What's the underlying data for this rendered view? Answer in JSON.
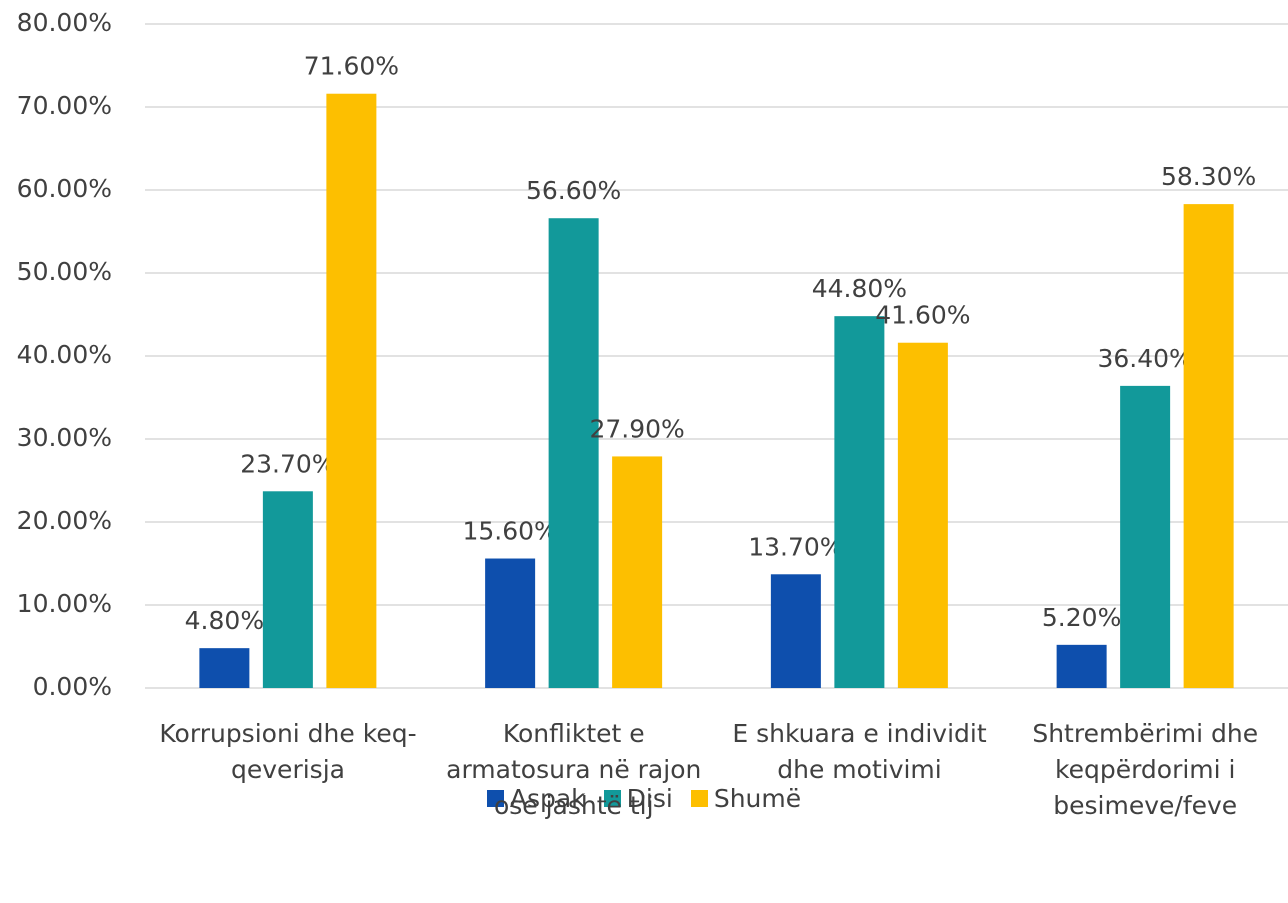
{
  "chart_data": {
    "type": "bar",
    "categories": [
      "Korrupsioni dhe keq-qeverisja",
      "Konfliktet e armatosura në rajon ose jashtë tij",
      "E shkuara e individit dhe motivimi",
      "Shtrembërimi dhe keqpërdorimi i besimeve/feve"
    ],
    "series": [
      {
        "name": "Aspak",
        "color": "#0e4fad",
        "values": [
          4.8,
          15.6,
          13.7,
          5.2
        ],
        "value_labels": [
          "4.80%",
          "15.60%",
          "13.70%",
          "5.20%"
        ]
      },
      {
        "name": "Disi",
        "color": "#12999a",
        "values": [
          23.7,
          56.6,
          44.8,
          36.4
        ],
        "value_labels": [
          "23.70%",
          "56.60%",
          "44.80%",
          "36.40%"
        ]
      },
      {
        "name": "Shumë",
        "color": "#fdbf00",
        "values": [
          71.6,
          27.9,
          41.6,
          58.3
        ],
        "value_labels": [
          "71.60%",
          "27.90%",
          "41.60%",
          "58.30%"
        ]
      }
    ],
    "ylim": [
      0,
      80
    ],
    "yticks": [
      {
        "value": 0,
        "label": "0.00%"
      },
      {
        "value": 10,
        "label": "10.00%"
      },
      {
        "value": 20,
        "label": "20.00%"
      },
      {
        "value": 30,
        "label": "30.00%"
      },
      {
        "value": 40,
        "label": "40.00%"
      },
      {
        "value": 50,
        "label": "50.00%"
      },
      {
        "value": 60,
        "label": "60.00%"
      },
      {
        "value": 70,
        "label": "70.00%"
      },
      {
        "value": 80,
        "label": "80.00%"
      }
    ],
    "grid": true,
    "legend": "bottom"
  }
}
